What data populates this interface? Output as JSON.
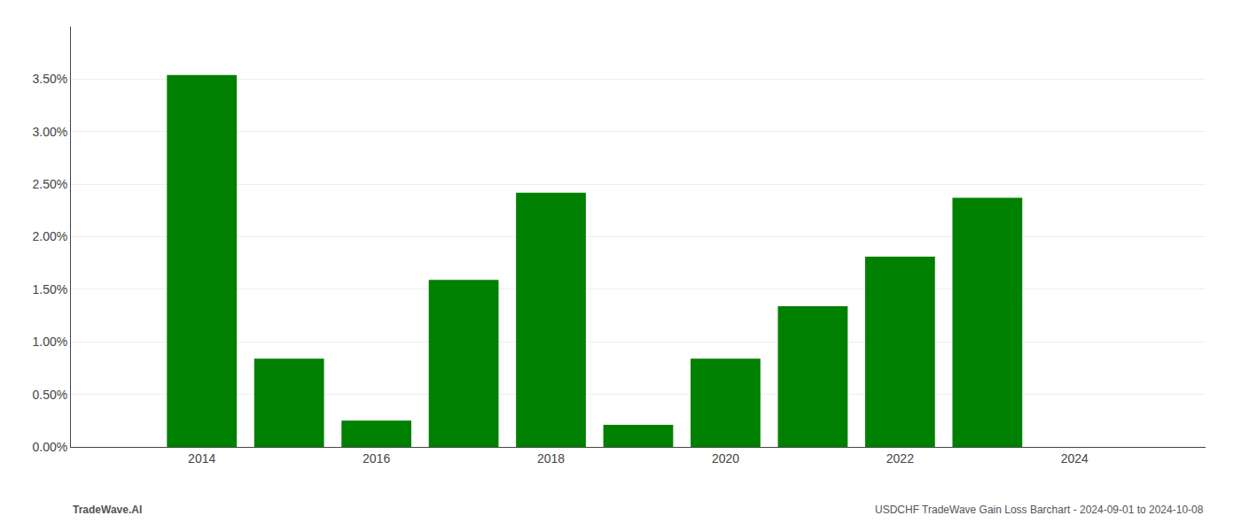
{
  "chart_data": {
    "type": "bar",
    "x": [
      2014,
      2015,
      2016,
      2017,
      2018,
      2019,
      2020,
      2021,
      2022,
      2023
    ],
    "values": [
      0.0354,
      0.0084,
      0.0025,
      0.0159,
      0.0242,
      0.0021,
      0.0084,
      0.0134,
      0.0181,
      0.0237
    ],
    "color": "#008000",
    "xlim": [
      2012.5,
      2025.5
    ],
    "xticks": [
      2014,
      2016,
      2018,
      2020,
      2022,
      2024
    ],
    "ylim": [
      0,
      0.04
    ],
    "yticks": [
      {
        "value": 0,
        "label": "0.00%"
      },
      {
        "value": 0.005,
        "label": "0.50%"
      },
      {
        "value": 0.01,
        "label": "1.00%"
      },
      {
        "value": 0.015,
        "label": "1.50%"
      },
      {
        "value": 0.02,
        "label": "2.00%"
      },
      {
        "value": 0.025,
        "label": "2.50%"
      },
      {
        "value": 0.03,
        "label": "3.00%"
      },
      {
        "value": 0.035,
        "label": "3.50%"
      }
    ],
    "grid": true,
    "annotations": [
      "TradeWave.AI",
      "USDCHF TradeWave Gain Loss Barchart - 2024-09-01 to 2024-10-08"
    ]
  }
}
